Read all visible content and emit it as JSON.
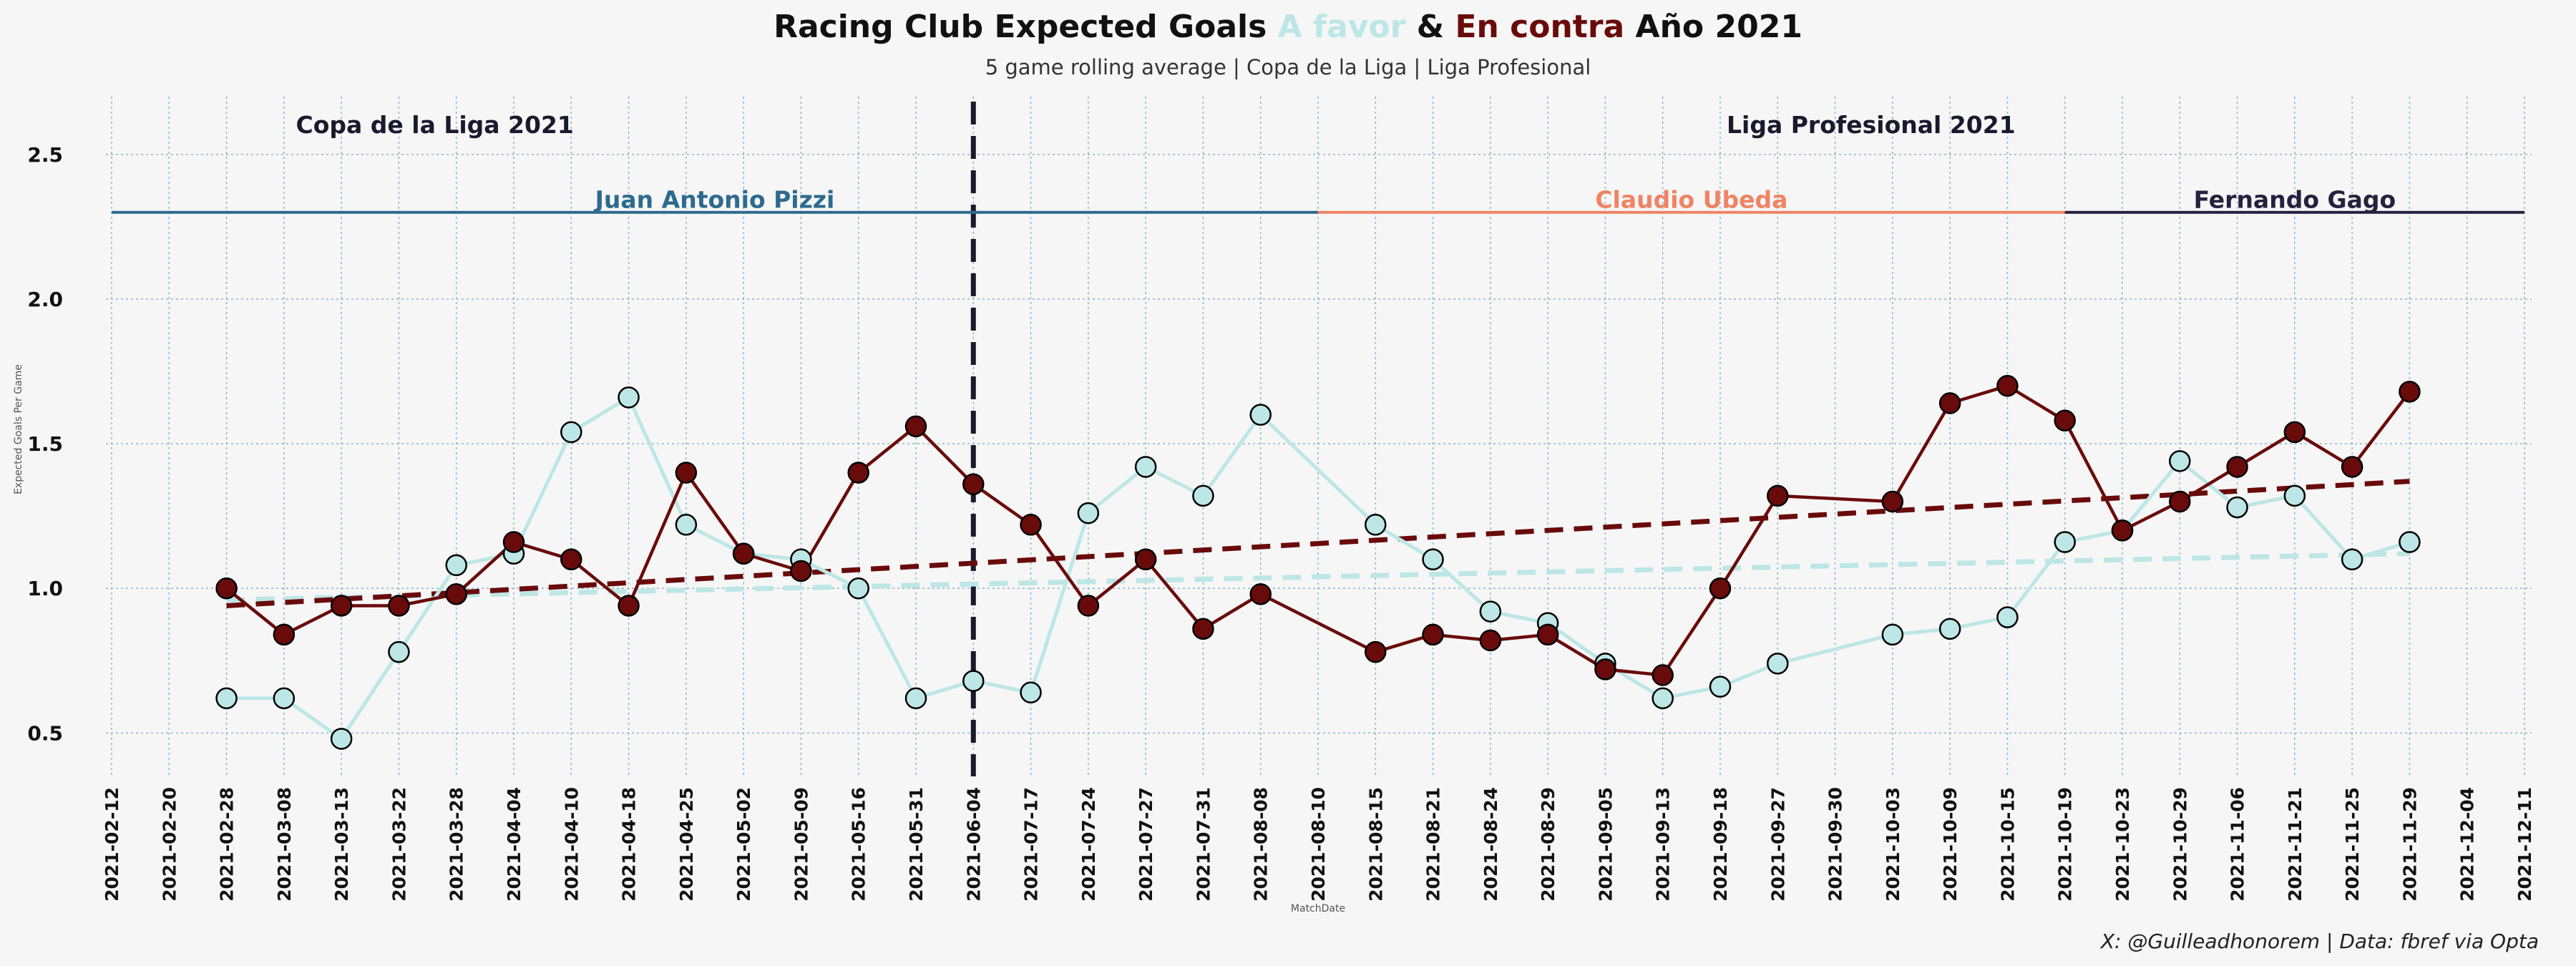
{
  "title": {
    "part1": "Racing Club Expected Goals ",
    "part2": "A favor",
    "part3": " & ",
    "part4": "En contra",
    "part5": " Año 2021"
  },
  "subtitle": "5 game rolling average | Copa de la Liga | Liga Profesional",
  "footer": "X: @Guilleadhonorem | Data: fbref via Opta",
  "colors": {
    "background": "#f6f6f6",
    "favor": "#bde6e6",
    "contra": "#6a0b0b",
    "pizzi": "#2d6a8e",
    "ubeda": "#f08363",
    "gago": "#26213f",
    "grid": "#8fb4c4",
    "divider": "#1a1a2e"
  },
  "chart_data": {
    "type": "line",
    "xlabel": "MatchDate",
    "ylabel": "Expected Goals Per Game",
    "ylim": [
      0.35,
      2.7
    ],
    "yticks": [
      "0.5",
      "1.0",
      "1.5",
      "2.0",
      "2.5"
    ],
    "grid": true,
    "categories": [
      "2021-02-12",
      "2021-02-20",
      "2021-02-28",
      "2021-03-08",
      "2021-03-13",
      "2021-03-22",
      "2021-03-28",
      "2021-04-04",
      "2021-04-10",
      "2021-04-18",
      "2021-04-25",
      "2021-05-02",
      "2021-05-09",
      "2021-05-16",
      "2021-05-31",
      "2021-06-04",
      "2021-07-17",
      "2021-07-24",
      "2021-07-27",
      "2021-07-31",
      "2021-08-08",
      "2021-08-10",
      "2021-08-15",
      "2021-08-21",
      "2021-08-24",
      "2021-08-29",
      "2021-09-05",
      "2021-09-13",
      "2021-09-18",
      "2021-09-27",
      "2021-09-30",
      "2021-10-03",
      "2021-10-09",
      "2021-10-15",
      "2021-10-19",
      "2021-10-23",
      "2021-10-29",
      "2021-11-06",
      "2021-11-21",
      "2021-11-25",
      "2021-11-29",
      "2021-12-04",
      "2021-12-11"
    ],
    "series": [
      {
        "name": "A favor",
        "values": [
          null,
          null,
          0.62,
          0.62,
          0.48,
          0.78,
          1.08,
          1.12,
          1.54,
          1.66,
          1.22,
          1.12,
          1.1,
          1.0,
          0.62,
          0.68,
          0.64,
          1.26,
          1.42,
          1.32,
          1.6,
          null,
          1.22,
          1.1,
          0.92,
          0.88,
          0.74,
          0.62,
          0.66,
          0.74,
          null,
          0.84,
          0.86,
          0.9,
          1.16,
          1.2,
          1.44,
          1.28,
          1.32,
          1.1,
          1.16,
          null,
          null
        ],
        "trend": [
          0.96,
          1.12
        ]
      },
      {
        "name": "En contra",
        "values": [
          null,
          null,
          1.0,
          0.84,
          0.94,
          0.94,
          0.98,
          1.16,
          1.1,
          0.94,
          1.4,
          1.12,
          1.06,
          1.4,
          1.56,
          1.36,
          1.22,
          0.94,
          1.1,
          0.86,
          0.98,
          null,
          0.78,
          0.84,
          0.82,
          0.84,
          0.72,
          0.7,
          1.0,
          1.32,
          null,
          1.3,
          1.64,
          1.7,
          1.58,
          1.2,
          1.3,
          1.42,
          1.54,
          1.42,
          1.68,
          null,
          null
        ],
        "trend": [
          0.94,
          1.37
        ]
      }
    ],
    "annotations": {
      "sections": [
        {
          "label": "Copa de la Liga 2021",
          "center_category": "2021-03-28"
        },
        {
          "label": "Liga Profesional 2021",
          "center_category": "2021-10-03"
        }
      ],
      "divider_category": "2021-06-04",
      "managers": [
        {
          "label": "Juan Antonio Pizzi",
          "from": "2021-02-12",
          "to": "2021-08-10",
          "y": 2.3,
          "color_key": "pizzi"
        },
        {
          "label": "Claudio Ubeda",
          "from": "2021-08-10",
          "to": "2021-10-19",
          "y": 2.3,
          "color_key": "ubeda"
        },
        {
          "label": "Fernando Gago",
          "from": "2021-10-19",
          "to": "2021-12-11",
          "y": 2.3,
          "color_key": "gago"
        }
      ]
    }
  }
}
